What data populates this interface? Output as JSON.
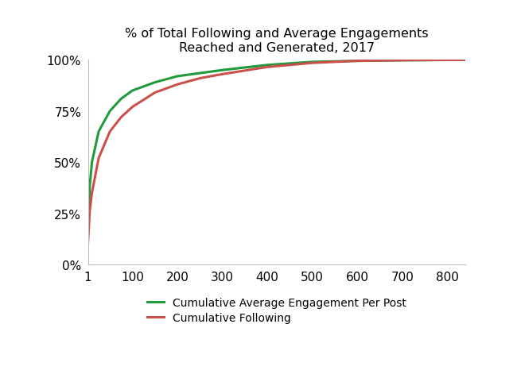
{
  "chart_data": {
    "type": "line",
    "title": "% of Total Following and Average Engagements\nReached and Generated, 2017",
    "x": [
      1,
      5,
      10,
      25,
      50,
      75,
      100,
      150,
      200,
      250,
      300,
      400,
      500,
      600,
      700,
      840
    ],
    "series": [
      {
        "name": "Cumulative Average Engagement Per Post",
        "color": "#1f9a3c",
        "values": [
          14,
          38,
          50,
          65,
          75,
          81,
          85,
          89,
          92,
          93.5,
          95,
          97.5,
          99,
          99.5,
          99.8,
          100
        ]
      },
      {
        "name": "Cumulative Following",
        "color": "#c9504b",
        "values": [
          10,
          26,
          35,
          52,
          65,
          72,
          77,
          84,
          88,
          91,
          93,
          96.5,
          98.5,
          99.5,
          99.8,
          100
        ]
      }
    ],
    "xlim": [
      1,
      840
    ],
    "xticks": [
      1,
      100,
      200,
      300,
      400,
      500,
      600,
      700,
      800
    ],
    "ylim": [
      0,
      100
    ],
    "yticks": [
      {
        "value": 0,
        "label": "0%"
      },
      {
        "value": 25,
        "label": "25%"
      },
      {
        "value": 50,
        "label": "50%"
      },
      {
        "value": 75,
        "label": "75%"
      },
      {
        "value": 100,
        "label": "100%"
      }
    ],
    "grid": false,
    "legend": "upper center"
  }
}
